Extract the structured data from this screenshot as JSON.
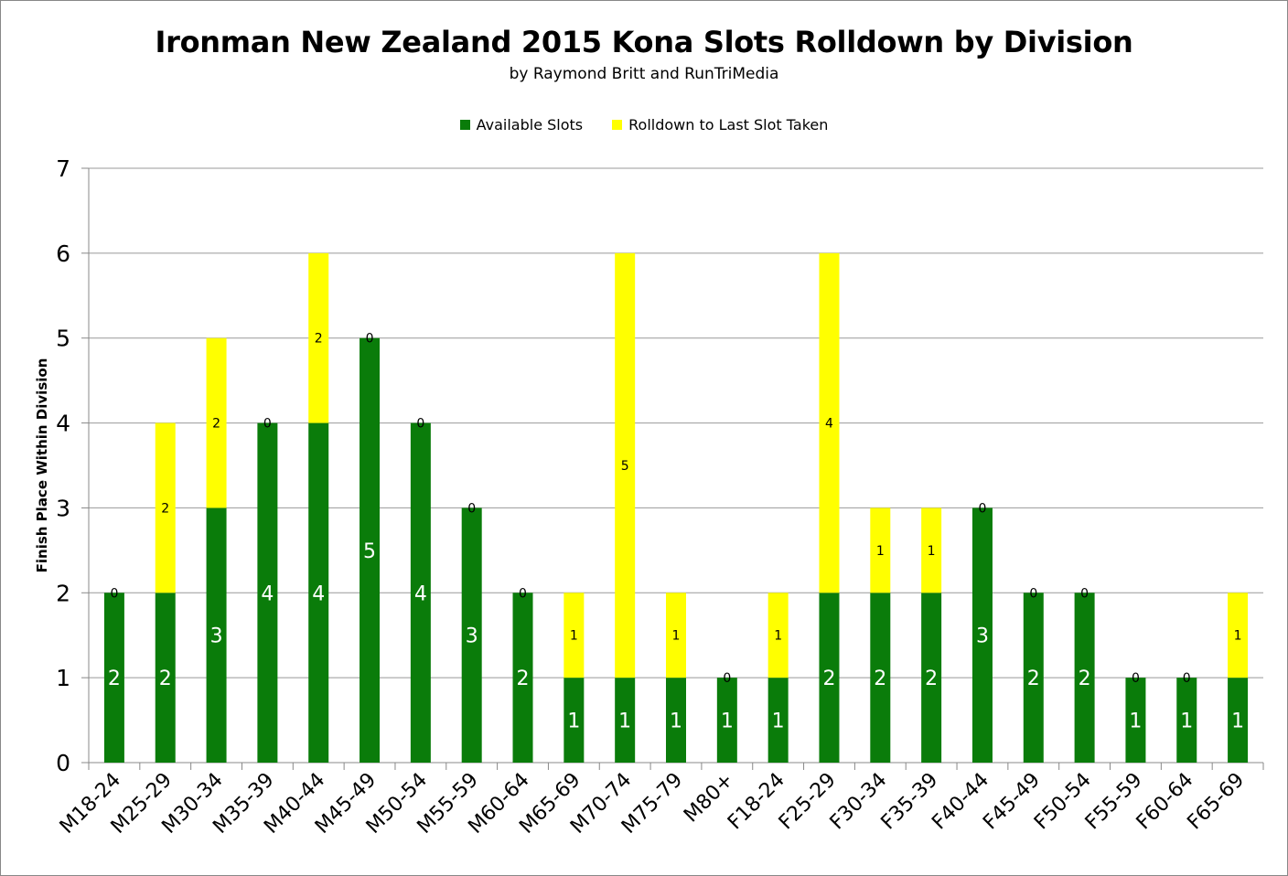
{
  "chart_data": {
    "type": "bar",
    "stacked": true,
    "title": "Ironman New Zealand 2015 Kona Slots Rolldown by Division",
    "subtitle": "by Raymond Britt and RunTriMedia",
    "xlabel": "",
    "ylabel": "Finish Place Within Division",
    "ylim": [
      0,
      7
    ],
    "yticks": [
      0,
      1,
      2,
      3,
      4,
      5,
      6,
      7
    ],
    "grid": true,
    "legend_position": "top",
    "categories": [
      "M18-24",
      "M25-29",
      "M30-34",
      "M35-39",
      "M40-44",
      "M45-49",
      "M50-54",
      "M55-59",
      "M60-64",
      "M65-69",
      "M70-74",
      "M75-79",
      "M80+",
      "F18-24",
      "F25-29",
      "F30-34",
      "F35-39",
      "F40-44",
      "F45-49",
      "F50-54",
      "F55-59",
      "F60-64",
      "F65-69"
    ],
    "series": [
      {
        "name": "Available Slots",
        "color": "#0a7c0a",
        "values": [
          2,
          2,
          3,
          4,
          4,
          5,
          4,
          3,
          2,
          1,
          1,
          1,
          1,
          1,
          2,
          2,
          2,
          3,
          2,
          2,
          1,
          1,
          1
        ]
      },
      {
        "name": "Rolldown to Last Slot Taken",
        "color": "#ffff00",
        "values": [
          0,
          2,
          2,
          0,
          2,
          0,
          0,
          0,
          0,
          1,
          5,
          1,
          0,
          1,
          4,
          1,
          1,
          0,
          0,
          0,
          0,
          0,
          1
        ]
      }
    ]
  }
}
